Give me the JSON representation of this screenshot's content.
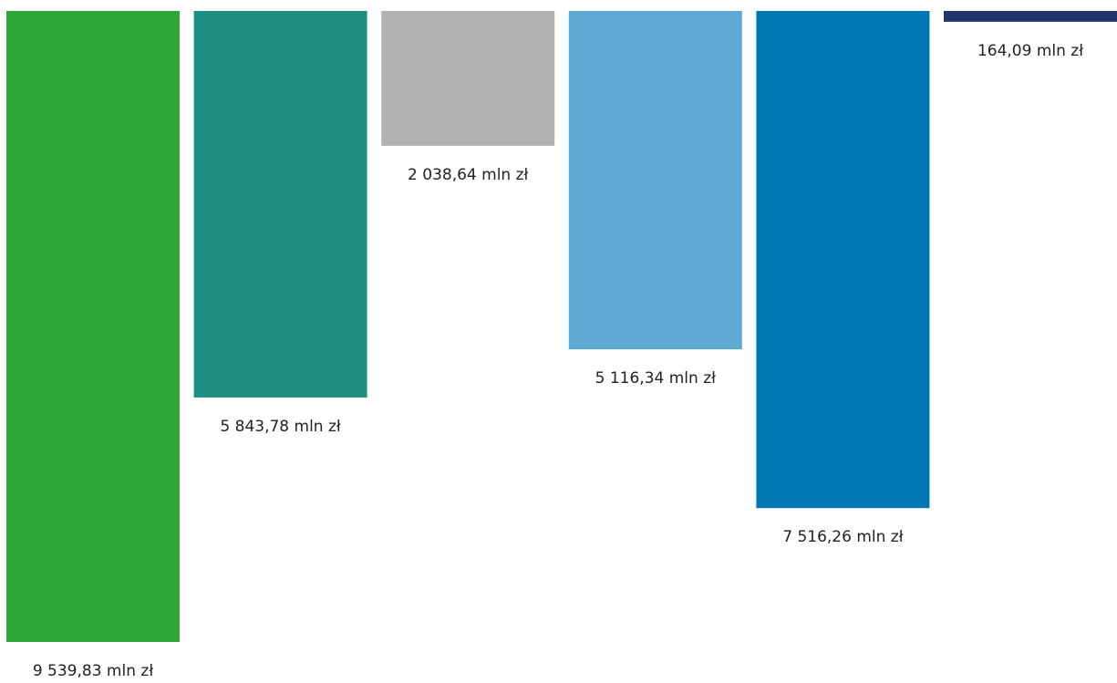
{
  "chart_data": {
    "type": "bar",
    "orientation": "vertical-down",
    "title": "",
    "xlabel": "",
    "ylabel": "",
    "grid": false,
    "legend": "none",
    "ylim": [
      0,
      9539.83
    ],
    "values": [
      9539.83,
      5843.78,
      2038.64,
      5116.34,
      7516.26,
      164.09
    ],
    "labels": [
      "9 539,83 mln zł",
      "5 843,78 mln zł",
      "2 038,64 mln zł",
      "5 116,34 mln zł",
      "7 516,26 mln zł",
      "164,09 mln zł"
    ],
    "colors": [
      "#2ea836",
      "#1e8e83",
      "#b2b2b2",
      "#5eaad5",
      "#0077b0",
      "#21356b"
    ]
  }
}
